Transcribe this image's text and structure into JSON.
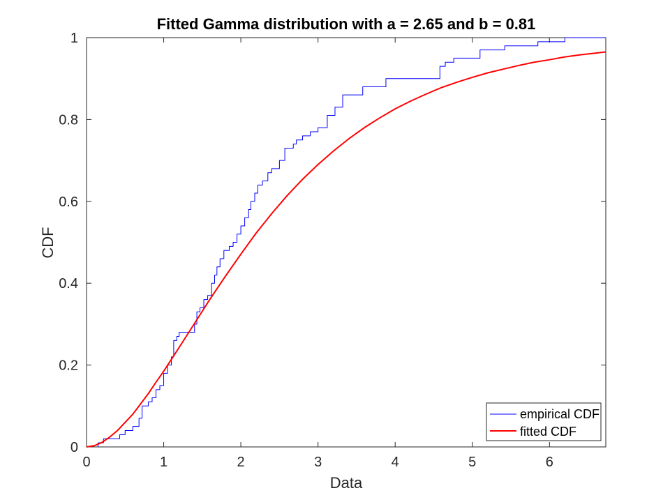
{
  "chart_data": {
    "type": "line",
    "title": "Fitted Gamma distribution with a = 2.65 and b = 0.81",
    "xlabel": "Data",
    "ylabel": "CDF",
    "xlim": [
      0,
      6.73
    ],
    "ylim": [
      0,
      1
    ],
    "xticks": [
      "0",
      "1",
      "2",
      "3",
      "4",
      "5",
      "6"
    ],
    "yticks": [
      "0",
      "0.2",
      "0.4",
      "0.6",
      "0.8",
      "1"
    ],
    "grid": false,
    "legend_position": "bottom-right",
    "series": [
      {
        "name": "empirical CDF",
        "kind": "step",
        "color": "#0000ff",
        "x": [
          0.15,
          0.22,
          0.43,
          0.5,
          0.6,
          0.68,
          0.72,
          0.8,
          0.85,
          0.9,
          0.95,
          1.0,
          1.05,
          1.1,
          1.13,
          1.17,
          1.2,
          1.4,
          1.43,
          1.47,
          1.52,
          1.57,
          1.62,
          1.66,
          1.69,
          1.73,
          1.78,
          1.85,
          1.9,
          1.95,
          2.0,
          2.05,
          2.1,
          2.13,
          2.18,
          2.22,
          2.28,
          2.35,
          2.4,
          2.5,
          2.57,
          2.68,
          2.72,
          2.8,
          2.9,
          3.0,
          3.12,
          3.22,
          3.32,
          3.58,
          3.88,
          4.58,
          4.65,
          4.76,
          5.1,
          5.42,
          5.85,
          6.2
        ],
        "y": [
          0.01,
          0.02,
          0.03,
          0.04,
          0.05,
          0.07,
          0.1,
          0.11,
          0.12,
          0.14,
          0.15,
          0.18,
          0.2,
          0.22,
          0.26,
          0.27,
          0.28,
          0.3,
          0.33,
          0.34,
          0.36,
          0.37,
          0.4,
          0.42,
          0.44,
          0.46,
          0.48,
          0.49,
          0.5,
          0.52,
          0.54,
          0.56,
          0.58,
          0.6,
          0.62,
          0.64,
          0.65,
          0.67,
          0.68,
          0.7,
          0.73,
          0.74,
          0.75,
          0.76,
          0.77,
          0.78,
          0.81,
          0.83,
          0.86,
          0.88,
          0.9,
          0.93,
          0.94,
          0.95,
          0.97,
          0.98,
          0.99,
          1.0
        ]
      },
      {
        "name": "fitted CDF",
        "kind": "line",
        "color": "#ff0000",
        "x": [
          0,
          0.1,
          0.2,
          0.3,
          0.4,
          0.5,
          0.6,
          0.7,
          0.8,
          0.9,
          1.0,
          1.2,
          1.4,
          1.6,
          1.8,
          2.0,
          2.2,
          2.4,
          2.6,
          2.8,
          3.0,
          3.2,
          3.4,
          3.6,
          3.8,
          4.0,
          4.2,
          4.4,
          4.6,
          4.8,
          5.0,
          5.2,
          5.4,
          5.6,
          5.8,
          6.0,
          6.2,
          6.4,
          6.73
        ],
        "y": [
          0,
          0.003,
          0.011,
          0.024,
          0.04,
          0.06,
          0.08,
          0.105,
          0.13,
          0.158,
          0.185,
          0.243,
          0.302,
          0.361,
          0.417,
          0.471,
          0.523,
          0.57,
          0.614,
          0.654,
          0.69,
          0.723,
          0.753,
          0.78,
          0.804,
          0.826,
          0.845,
          0.862,
          0.878,
          0.891,
          0.903,
          0.914,
          0.923,
          0.932,
          0.94,
          0.946,
          0.953,
          0.958,
          0.965
        ]
      }
    ]
  }
}
